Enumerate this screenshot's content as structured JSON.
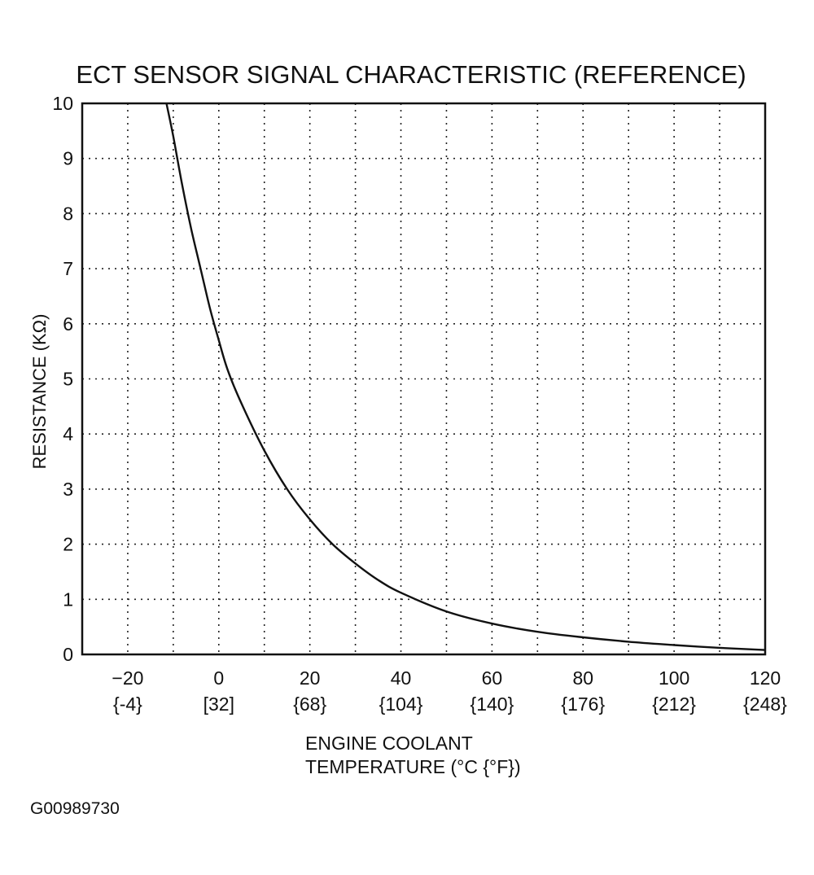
{
  "chart_data": {
    "type": "line",
    "title": "ECT SENSOR SIGNAL CHARACTERISTIC (REFERENCE)",
    "xlabel_lines": [
      "ENGINE COOLANT",
      "TEMPERATURE  (°C {°F})"
    ],
    "ylabel": "RESISTANCE (KΩ)",
    "xlim": [
      -30,
      120
    ],
    "ylim": [
      0,
      10
    ],
    "x_ticks": [
      {
        "c": "−20",
        "f": "{-4}"
      },
      {
        "c": "0",
        "f": "[32]"
      },
      {
        "c": "20",
        "f": "{68}"
      },
      {
        "c": "40",
        "f": "{104}"
      },
      {
        "c": "60",
        "f": "{140}"
      },
      {
        "c": "80",
        "f": "{176}"
      },
      {
        "c": "100",
        "f": "{212}"
      },
      {
        "c": "120",
        "f": "{248}"
      }
    ],
    "x_tick_values": [
      -20,
      0,
      20,
      40,
      60,
      80,
      100,
      120
    ],
    "x_grid": [
      -20,
      -10,
      0,
      10,
      20,
      30,
      40,
      50,
      60,
      70,
      80,
      90,
      100,
      110,
      120
    ],
    "y_ticks": [
      "0",
      "1",
      "2",
      "3",
      "4",
      "5",
      "6",
      "7",
      "8",
      "9",
      "10"
    ],
    "y_tick_values": [
      0,
      1,
      2,
      3,
      4,
      5,
      6,
      7,
      8,
      9,
      10
    ],
    "grid": true,
    "series": [
      {
        "name": "Resistance",
        "x": [
          -11.5,
          -10,
          -8,
          -6,
          -4,
          -2,
          0,
          2,
          5,
          10,
          15,
          20,
          25,
          30,
          35,
          40,
          50,
          60,
          70,
          80,
          90,
          100,
          110,
          120
        ],
        "y": [
          10,
          9.4,
          8.5,
          7.7,
          7.0,
          6.3,
          5.7,
          5.15,
          4.55,
          3.7,
          3.0,
          2.45,
          2.0,
          1.65,
          1.35,
          1.12,
          0.78,
          0.56,
          0.41,
          0.31,
          0.23,
          0.17,
          0.12,
          0.08
        ]
      }
    ]
  },
  "figure_code": "G00989730"
}
